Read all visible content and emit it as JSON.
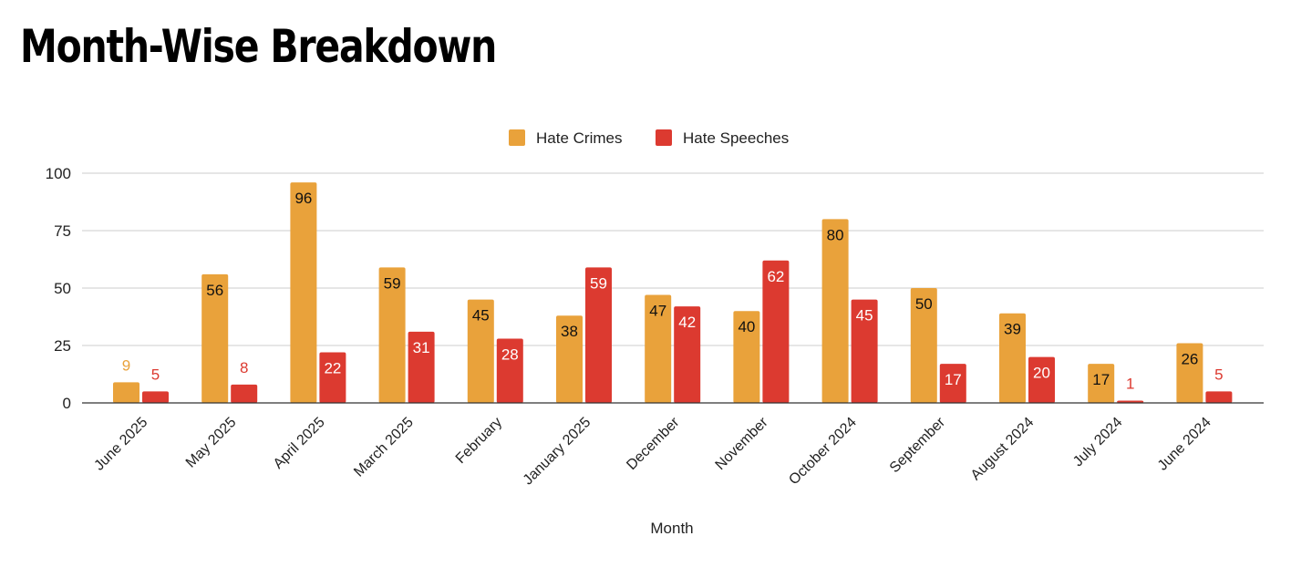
{
  "page": {
    "title": "Month-Wise Breakdown"
  },
  "chart_data": {
    "type": "bar",
    "xlabel": "Month",
    "ylabel": "",
    "ylim": [
      0,
      100
    ],
    "yticks": [
      0,
      25,
      50,
      75,
      100
    ],
    "grid": true,
    "legend_position": "top",
    "categories": [
      "June 2025",
      "May 2025",
      "April 2025",
      "March 2025",
      "February",
      "January 2025",
      "December",
      "November",
      "October 2024",
      "September",
      "August 2024",
      "July 2024",
      "June 2024"
    ],
    "series": [
      {
        "name": "Hate Crimes",
        "color": "#e9a23b",
        "values": [
          9,
          56,
          96,
          59,
          45,
          38,
          47,
          40,
          80,
          50,
          39,
          17,
          26
        ]
      },
      {
        "name": "Hate Speeches",
        "color": "#dc3a30",
        "values": [
          5,
          8,
          22,
          31,
          28,
          59,
          42,
          62,
          45,
          17,
          20,
          1,
          5
        ]
      }
    ]
  }
}
